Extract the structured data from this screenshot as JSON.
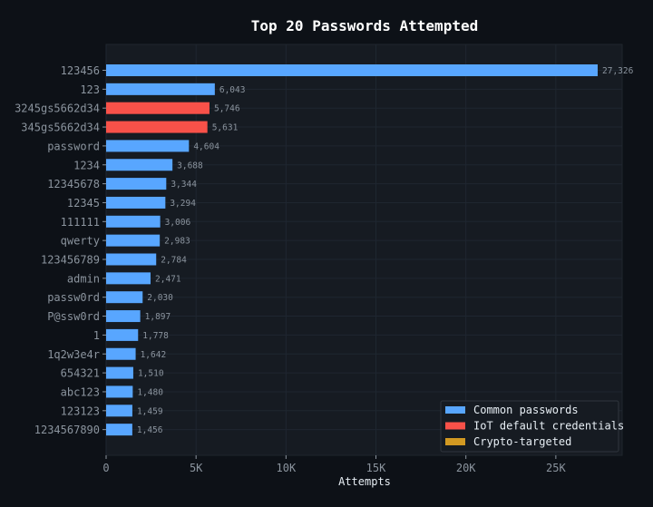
{
  "chart_data": {
    "type": "bar",
    "orientation": "horizontal",
    "title": "Top 20 Passwords Attempted",
    "xlabel": "Attempts",
    "ylabel": "",
    "xlim": [
      0,
      28700
    ],
    "xticks": [
      0,
      5000,
      10000,
      15000,
      20000,
      25000
    ],
    "xtick_labels": [
      "0",
      "5K",
      "10K",
      "15K",
      "20K",
      "25K"
    ],
    "grid": true,
    "legend_position": "bottom-right",
    "categories": [
      "123456",
      "123",
      "3245gs5662d34",
      "345gs5662d34",
      "password",
      "1234",
      "12345678",
      "12345",
      "111111",
      "qwerty",
      "123456789",
      "admin",
      "passw0rd",
      "P@ssw0rd",
      "1",
      "1q2w3e4r",
      "654321",
      "abc123",
      "123123",
      "1234567890"
    ],
    "values": [
      27326,
      6043,
      5746,
      5631,
      4604,
      3688,
      3344,
      3294,
      3006,
      2983,
      2784,
      2471,
      2030,
      1897,
      1778,
      1642,
      1510,
      1480,
      1459,
      1456
    ],
    "value_labels": [
      "27,326",
      "6,043",
      "5,746",
      "5,631",
      "4,604",
      "3,688",
      "3,344",
      "3,294",
      "3,006",
      "2,983",
      "2,784",
      "2,471",
      "2,030",
      "1,897",
      "1,778",
      "1,642",
      "1,510",
      "1,480",
      "1,459",
      "1,456"
    ],
    "bar_groups": [
      0,
      0,
      1,
      1,
      0,
      0,
      0,
      0,
      0,
      0,
      0,
      0,
      0,
      0,
      0,
      0,
      0,
      0,
      0,
      0
    ],
    "legend": [
      {
        "name": "Common passwords",
        "color": "#58a6ff"
      },
      {
        "name": "IoT default credentials",
        "color": "#f85149"
      },
      {
        "name": "Crypto-targeted",
        "color": "#d29922"
      }
    ],
    "colors": {
      "background": "#0d1117",
      "plot_background": "#161b22",
      "grid": "#1f2630",
      "text": "#8b949e",
      "title": "#ffffff"
    }
  }
}
